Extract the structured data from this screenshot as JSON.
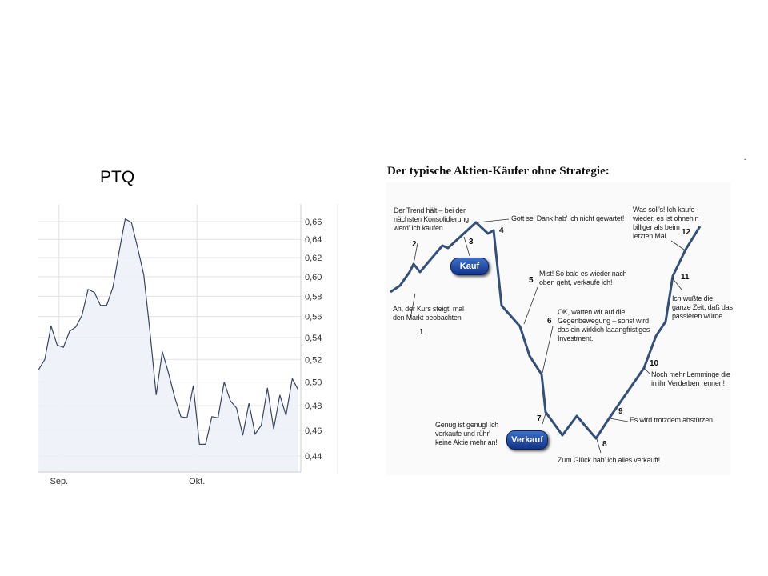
{
  "chart_data": {
    "type": "area",
    "title": "PTQ",
    "xlabel": "",
    "ylabel": "",
    "y_scale": "log",
    "ylim": [
      0.43,
      0.675
    ],
    "y_ticks": [
      "0,44",
      "0,46",
      "0,48",
      "0,50",
      "0,52",
      "0,54",
      "0,56",
      "0,58",
      "0,60",
      "0,62",
      "0,64",
      "0,66"
    ],
    "y_tick_values": [
      0.44,
      0.46,
      0.48,
      0.5,
      0.52,
      0.54,
      0.56,
      0.58,
      0.6,
      0.62,
      0.64,
      0.66
    ],
    "x_ticks": [
      {
        "label": "Sep.",
        "index": 3.3
      },
      {
        "label": "Okt.",
        "index": 25.6
      }
    ],
    "grid": true,
    "y_axis_side": "right",
    "line_color": "#3a4660",
    "fill_color": "#eef1f9",
    "values": [
      0.511,
      0.52,
      0.551,
      0.533,
      0.531,
      0.546,
      0.55,
      0.561,
      0.587,
      0.584,
      0.571,
      0.571,
      0.589,
      0.626,
      0.663,
      0.659,
      0.631,
      0.602,
      0.545,
      0.489,
      0.527,
      0.508,
      0.487,
      0.471,
      0.47,
      0.497,
      0.449,
      0.449,
      0.471,
      0.47,
      0.5,
      0.484,
      0.478,
      0.456,
      0.482,
      0.457,
      0.464,
      0.495,
      0.461,
      0.489,
      0.472,
      0.503,
      0.493
    ]
  },
  "diagram": {
    "title": "Der typische Aktien-Käufer ohne Strategie:",
    "line_color": "#34507a",
    "buttons": {
      "buy": "Kauf",
      "sell": "Verkauf"
    },
    "notes": [
      {
        "num": "1",
        "text": "Ah, der Kurs steigt, mal\nden Markt beobachten"
      },
      {
        "num": "2",
        "text": "Der Trend hält – bei der\nnächsten Konsolidierung\nwerd' ich kaufen"
      },
      {
        "num": "3",
        "text": ""
      },
      {
        "num": "4",
        "text": "Gott sei Dank hab' ich nicht gewartet!"
      },
      {
        "num": "5",
        "text": "Mist! So bald es wieder nach\noben geht, verkaufe ich!"
      },
      {
        "num": "6",
        "text": "OK, warten wir auf die\nGegenbewegung – sonst wird\ndas ein wirklich laaangfristiges\nInvestment."
      },
      {
        "num": "7",
        "text": "Genug ist genug! Ich\nverkaufe und rühr'\nkeine Aktie mehr an!"
      },
      {
        "num": "8",
        "text": "Zum Glück hab' ich alles verkauft!"
      },
      {
        "num": "9",
        "text": "Es wird trotzdem abstürzen"
      },
      {
        "num": "10",
        "text": "Noch mehr Lemminge die\nin ihr Verderben rennen!"
      },
      {
        "num": "11",
        "text": "Ich wußte die\nganze Zeit, daß das\npassieren würde"
      },
      {
        "num": "12",
        "text": "Was soll's! Ich kaufe\nwieder, es ist ohnehin\nbilliger als beim\nletzten Mal."
      }
    ]
  },
  "corner_mark": "-"
}
